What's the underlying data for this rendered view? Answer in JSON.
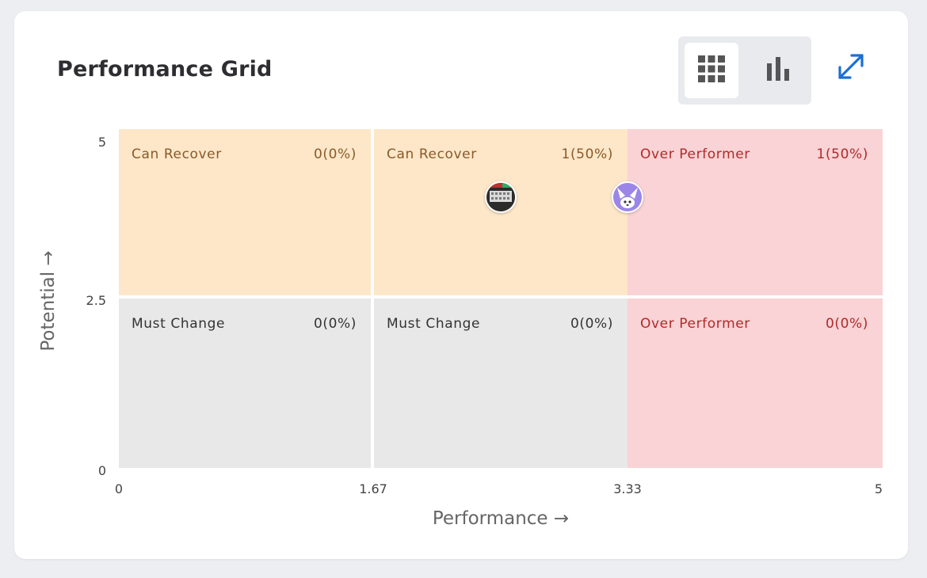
{
  "title": "Performance Grid",
  "toolbar": {
    "grid_view_icon": "grid-icon",
    "bar_view_icon": "bar-chart-icon",
    "expand_icon": "expand-icon",
    "active_view": "grid"
  },
  "axes": {
    "x_label": "Performance →",
    "y_label": "Potential →",
    "x_ticks": [
      "0",
      "1.67",
      "3.33",
      "5"
    ],
    "y_ticks": [
      "5",
      "2.5",
      "0"
    ]
  },
  "colors": {
    "can_recover_bg": "#fde7c8",
    "can_recover_text": "#8a5a2a",
    "must_change_bg": "#e8e8e8",
    "must_change_text": "#333333",
    "over_performer_bg": "#f9d3d5",
    "over_performer_text": "#b02a2a",
    "accent_blue": "#1a6fd6"
  },
  "cells": [
    {
      "label": "Can Recover",
      "count": "0(0%)"
    },
    {
      "label": "Can Recover",
      "count": "1(50%)"
    },
    {
      "label": "Over Performer",
      "count": "1(50%)"
    },
    {
      "label": "Must Change",
      "count": "0(0%)"
    },
    {
      "label": "Must Change",
      "count": "0(0%)"
    },
    {
      "label": "Over Performer",
      "count": "0(0%)"
    }
  ],
  "chart_data": {
    "type": "scatter",
    "xlabel": "Performance →",
    "ylabel": "Potential →",
    "xlim": [
      0,
      5
    ],
    "ylim": [
      0,
      5
    ],
    "x_ticks": [
      0,
      1.67,
      3.33,
      5
    ],
    "y_ticks": [
      0,
      2.5,
      5
    ],
    "points": [
      {
        "x": 2.5,
        "y": 4.0,
        "avatar": "photo-avatar"
      },
      {
        "x": 3.33,
        "y": 4.0,
        "avatar": "cat-avatar"
      }
    ]
  }
}
